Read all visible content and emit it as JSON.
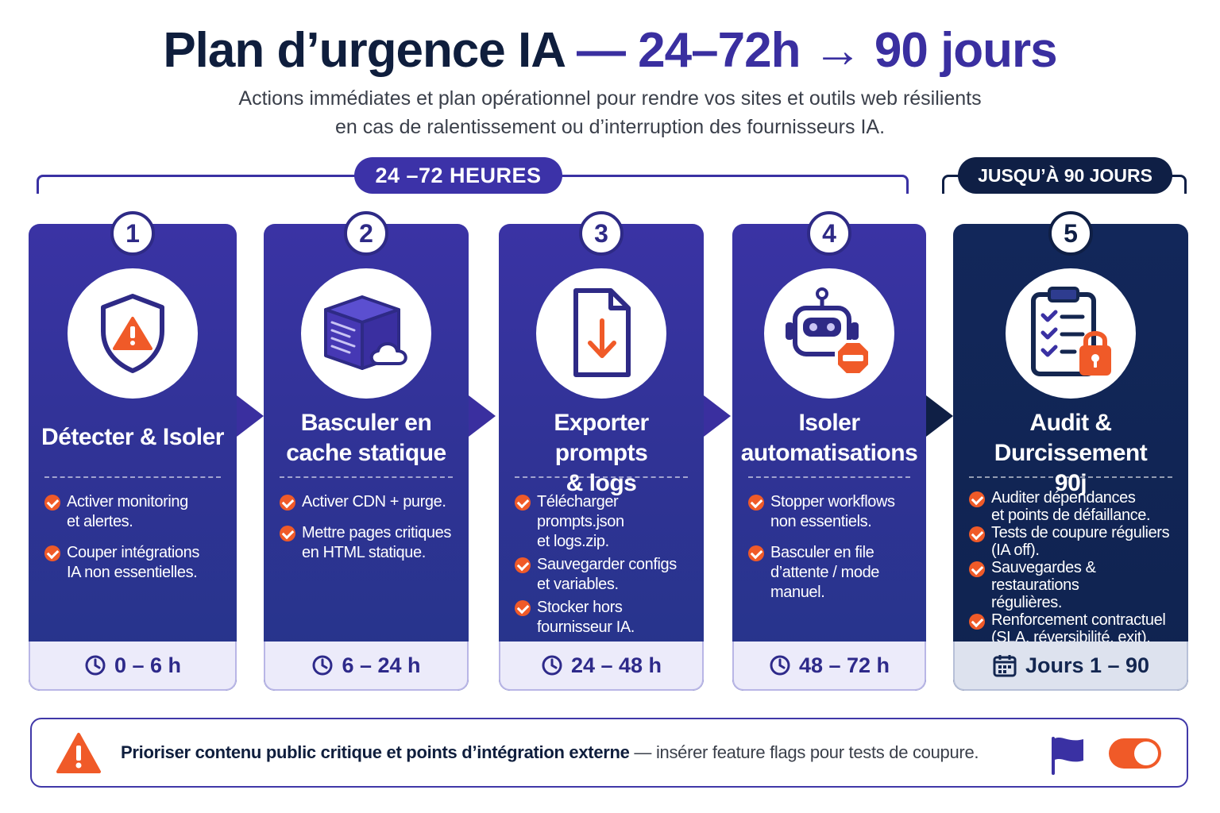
{
  "header": {
    "title_main": "Plan d’urgence IA",
    "title_accent": "— 24–72h → 90 jours",
    "subtitle_line1": "Actions immédiates et plan opérationnel pour rendre vos sites et outils web résilients",
    "subtitle_line2": "en cas de ralentissement ou d’interruption des fournisseurs IA."
  },
  "phases": [
    {
      "label": "24 –72 HEURES",
      "color": "#3c32a8"
    },
    {
      "label": "JUSQU’À 90 JOURS",
      "color": "#0f1f45"
    }
  ],
  "steps": [
    {
      "number": "1",
      "icon": "shield-warning-icon",
      "title_lines": [
        "Détecter & Isoler"
      ],
      "bullets": [
        [
          "Activer monitoring",
          "et alertes."
        ],
        [
          "Couper intégrations",
          "IA non essentielles."
        ]
      ],
      "time": "0 – 6 h",
      "time_icon": "clock-icon"
    },
    {
      "number": "2",
      "icon": "server-cloud-icon",
      "title_lines": [
        "Basculer en",
        "cache statique"
      ],
      "bullets": [
        [
          "Activer CDN + purge."
        ],
        [
          "Mettre pages critiques",
          "en HTML statique."
        ]
      ],
      "time": "6 – 24 h",
      "time_icon": "clock-icon"
    },
    {
      "number": "3",
      "icon": "file-download-icon",
      "title_lines": [
        "Exporter prompts",
        "& logs"
      ],
      "bullets": [
        [
          "Télécharger prompts.json",
          "et logs.zip."
        ],
        [
          "Sauvegarder configs",
          "et variables."
        ],
        [
          "Stocker hors",
          "fournisseur IA."
        ]
      ],
      "time": "24 – 48 h",
      "time_icon": "clock-icon"
    },
    {
      "number": "4",
      "icon": "robot-stop-icon",
      "title_lines": [
        "Isoler",
        "automatisations"
      ],
      "bullets": [
        [
          "Stopper workflows",
          "non essentiels."
        ],
        [
          "Basculer en file",
          "d’attente / mode",
          "manuel."
        ]
      ],
      "time": "48 – 72 h",
      "time_icon": "clock-icon"
    },
    {
      "number": "5",
      "icon": "clipboard-lock-icon",
      "title_lines": [
        "Audit & Durcissement",
        "90j"
      ],
      "bullets": [
        [
          "Auditer dépendances",
          "et points de défaillance."
        ],
        [
          "Tests de coupure réguliers",
          "(IA off)."
        ],
        [
          "Sauvegardes & restaurations",
          "régulières."
        ],
        [
          "Renforcement contractuel",
          "(SLA, réversibilité, exit)."
        ]
      ],
      "time": "Jours 1 – 90",
      "time_icon": "calendar-icon"
    }
  ],
  "note": {
    "bold": "Prioriser contenu public critique et points d’intégration externe",
    "dash": " — ",
    "rest": "insérer feature flags pour tests de coupure.",
    "icon": "warning-triangle-icon",
    "flag_icon": "flag-icon",
    "toggle_icon": "toggle-switch-icon"
  },
  "colors": {
    "accent": "#3c32a8",
    "dark": "#0f1f45",
    "orange": "#f05a28"
  }
}
